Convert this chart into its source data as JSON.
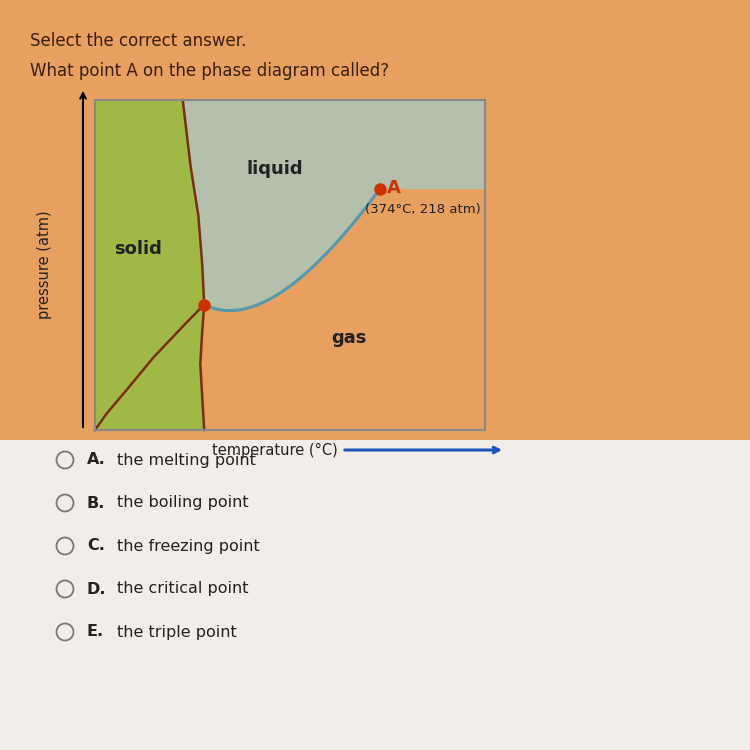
{
  "header": "Select the correct answer.",
  "title": "What point A on the phase diagram called?",
  "page_top_color": "#e8a060",
  "page_bottom_color": "#f0ece8",
  "diagram_border_color": "#888888",
  "solid_color": "#a0b845",
  "liquid_color": "#a8c8c0",
  "gas_color": "#e8a060",
  "melt_curve_color": "#7a3010",
  "vap_curve_color": "#5599aa",
  "point_color": "#cc3300",
  "ylabel": "pressure (atm)",
  "xlabel": "temperature (°C)",
  "point_A_label": "A",
  "point_A_annotation": "(374°C, 218 atm)",
  "choices": [
    {
      "letter": "A.",
      "text": "the melting point"
    },
    {
      "letter": "B.",
      "text": "the boiling point"
    },
    {
      "letter": "C.",
      "text": "the freezing point"
    },
    {
      "letter": "D.",
      "text": "the critical point"
    },
    {
      "letter": "E.",
      "text": "the triple point"
    }
  ]
}
